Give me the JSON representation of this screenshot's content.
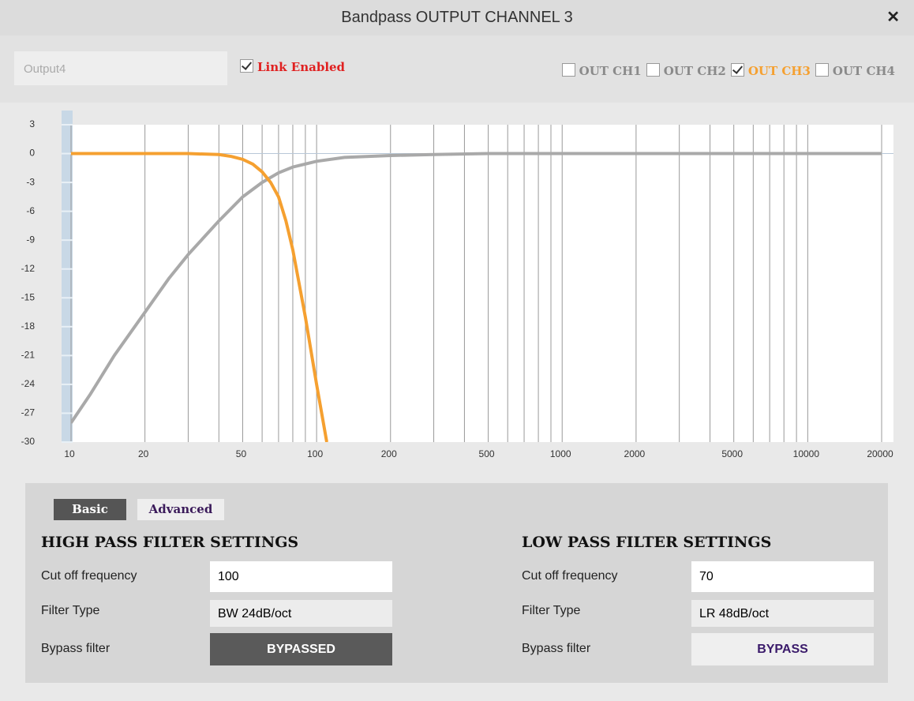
{
  "window": {
    "title": "Bandpass OUTPUT CHANNEL 3",
    "close": "✕"
  },
  "name_field": "Output4",
  "link": {
    "label": "Link Enabled",
    "checked": true,
    "color": "#e02020"
  },
  "channels": [
    {
      "label": "OUT CH1",
      "checked": false,
      "color": "#8a8a8a"
    },
    {
      "label": "OUT CH2",
      "checked": false,
      "color": "#8a8a8a"
    },
    {
      "label": "OUT CH3",
      "checked": true,
      "color": "#f5a030"
    },
    {
      "label": "OUT CH4",
      "checked": false,
      "color": "#8a8a8a"
    }
  ],
  "chart_data": {
    "type": "line",
    "xscale": "log",
    "xlim": [
      10,
      20000
    ],
    "ylim": [
      -30,
      3
    ],
    "xticks": [
      10,
      20,
      50,
      100,
      200,
      500,
      1000,
      2000,
      5000,
      10000,
      20000
    ],
    "yticks": [
      3,
      0,
      -3,
      -6,
      -9,
      -12,
      -15,
      -18,
      -21,
      -24,
      -27,
      -30
    ],
    "x_gridlines": [
      10,
      20,
      30,
      40,
      50,
      60,
      70,
      80,
      90,
      100,
      200,
      300,
      400,
      500,
      600,
      700,
      800,
      900,
      1000,
      2000,
      3000,
      4000,
      5000,
      6000,
      7000,
      8000,
      9000,
      10000,
      20000
    ],
    "series": [
      {
        "color": "#a9a9a9",
        "x": [
          10,
          12,
          15,
          20,
          25,
          30,
          40,
          50,
          60,
          70,
          80,
          100,
          130,
          200,
          300,
          500,
          1000,
          20000
        ],
        "values": [
          -28,
          -25,
          -21,
          -16.5,
          -13,
          -10.5,
          -7,
          -4.5,
          -3,
          -2,
          -1.4,
          -0.8,
          -0.4,
          -0.2,
          -0.1,
          0,
          0,
          0
        ]
      },
      {
        "color": "#f5a030",
        "x": [
          10,
          20,
          30,
          40,
          45,
          50,
          55,
          60,
          65,
          70,
          75,
          80,
          90,
          100,
          110
        ],
        "values": [
          0,
          0,
          0,
          -0.1,
          -0.3,
          -0.6,
          -1.1,
          -1.9,
          -3,
          -4.5,
          -7,
          -10,
          -17,
          -24,
          -30
        ]
      }
    ]
  },
  "tabs": [
    {
      "label": "Basic",
      "active": true
    },
    {
      "label": "Advanced",
      "active": false
    }
  ],
  "high_pass": {
    "heading": "HIGH PASS FILTER SETTINGS",
    "cutoff_label": "Cut off frequency",
    "cutoff": "100",
    "type_label": "Filter Type",
    "type": "BW 24dB/oct",
    "bypass_label": "Bypass filter",
    "bypass": "BYPASSED",
    "bypassed": true
  },
  "low_pass": {
    "heading": "LOW PASS FILTER SETTINGS",
    "cutoff_label": "Cut off frequency",
    "cutoff": "70",
    "type_label": "Filter Type",
    "type": "LR 48dB/oct",
    "bypass_label": "Bypass filter",
    "bypass": "BYPASS",
    "bypassed": false
  }
}
